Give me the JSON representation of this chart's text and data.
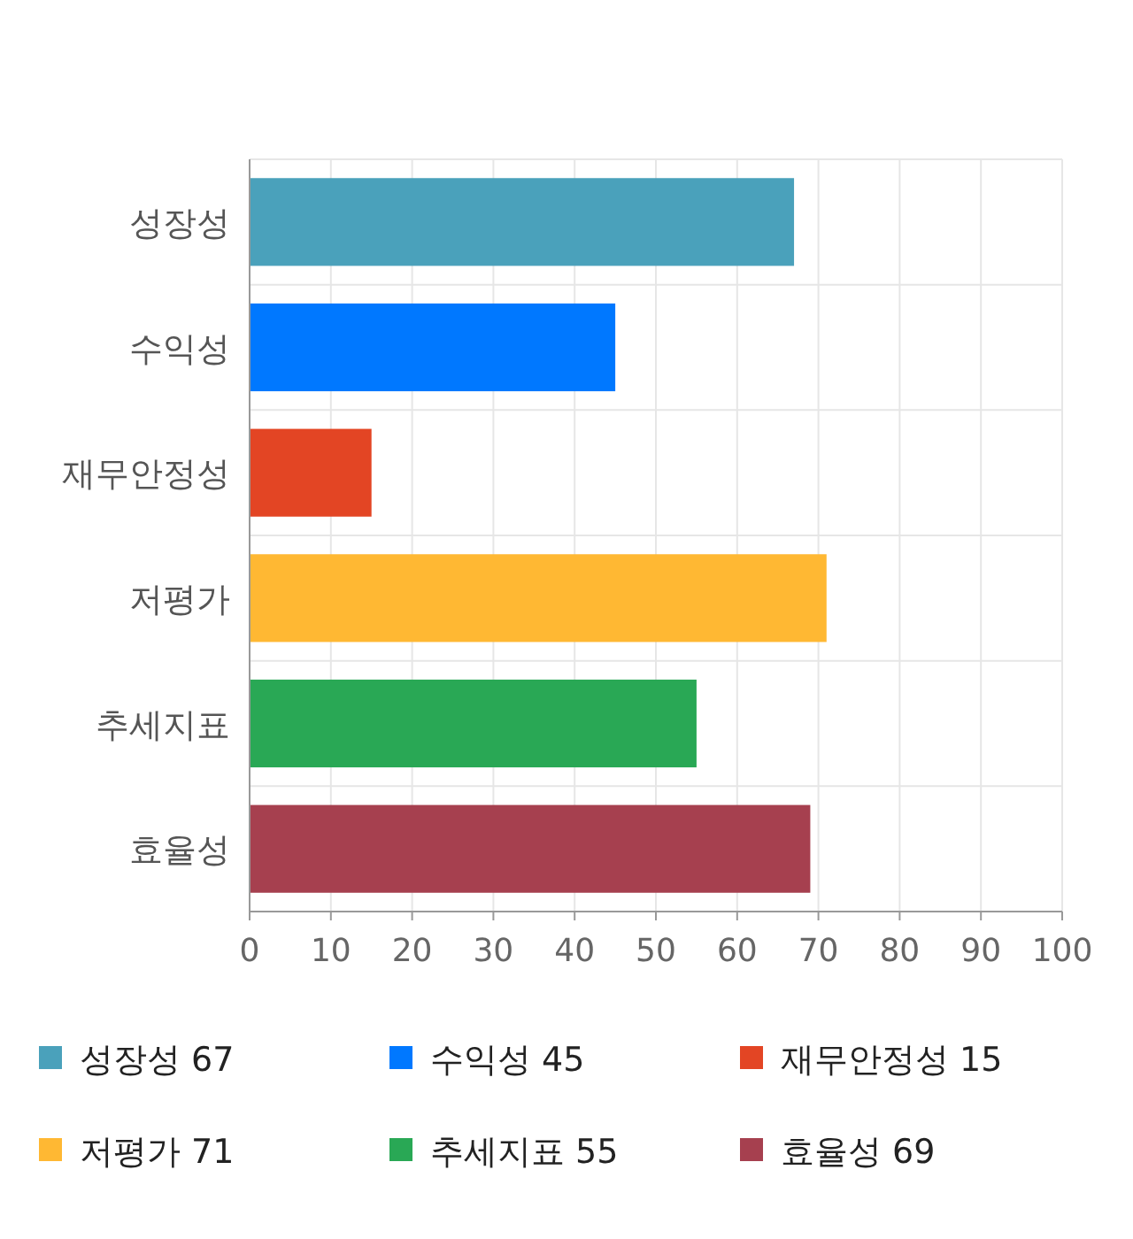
{
  "chart_data": {
    "type": "bar",
    "orientation": "horizontal",
    "stacked": true,
    "categories": [
      "성장성",
      "수익성",
      "재무안정성",
      "저평가",
      "추세지표",
      "효율성"
    ],
    "series": [
      {
        "name": "성장성 67",
        "color": "#4aa1bb",
        "values": [
          67,
          null,
          null,
          null,
          null,
          null
        ]
      },
      {
        "name": "수익성 45",
        "color": "#0078ff",
        "values": [
          null,
          45,
          null,
          null,
          null,
          null
        ]
      },
      {
        "name": "재무안정성 15",
        "color": "#e34524",
        "values": [
          null,
          null,
          15,
          null,
          null,
          null
        ]
      },
      {
        "name": "저평가 71",
        "color": "#ffb833",
        "values": [
          null,
          null,
          null,
          71,
          null,
          null
        ]
      },
      {
        "name": "추세지표 55",
        "color": "#29a855",
        "values": [
          null,
          null,
          null,
          null,
          55,
          null
        ]
      },
      {
        "name": "효율성 69",
        "color": "#a6404f",
        "values": [
          null,
          null,
          null,
          null,
          null,
          69
        ]
      }
    ],
    "xlim": [
      0,
      100
    ],
    "xticks": [
      0,
      10,
      20,
      30,
      40,
      50,
      60,
      70,
      80,
      90,
      100
    ],
    "grid": true,
    "legend": "bottom"
  }
}
